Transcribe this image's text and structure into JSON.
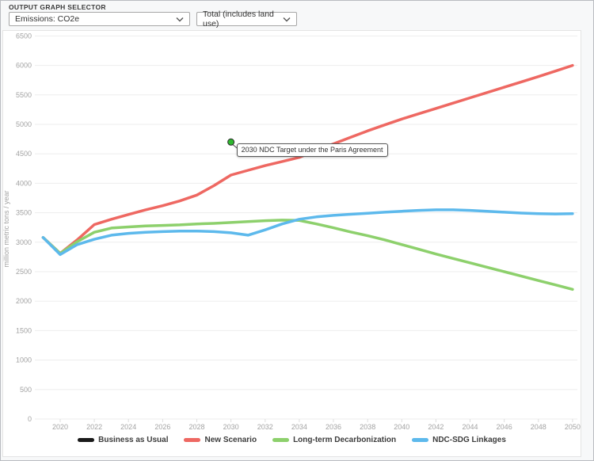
{
  "header": {
    "label": "OUTPUT GRAPH SELECTOR",
    "graph_select": {
      "value": "Emissions: CO2e"
    },
    "unit_select": {
      "value": "Total (includes land use)"
    }
  },
  "chart_data": {
    "type": "line",
    "title": "",
    "xlabel": "",
    "ylabel": "million metric tons / year",
    "ylim": [
      0,
      6500
    ],
    "ytick_step": 500,
    "xticks": [
      2020,
      2022,
      2024,
      2026,
      2028,
      2030,
      2032,
      2034,
      2036,
      2038,
      2040,
      2042,
      2044,
      2046,
      2048,
      2050
    ],
    "grid": true,
    "legend_position": "bottom",
    "x": [
      2019,
      2020,
      2021,
      2022,
      2023,
      2024,
      2025,
      2026,
      2027,
      2028,
      2029,
      2030,
      2031,
      2032,
      2033,
      2034,
      2035,
      2036,
      2037,
      2038,
      2039,
      2040,
      2041,
      2042,
      2043,
      2044,
      2045,
      2046,
      2047,
      2048,
      2049,
      2050
    ],
    "series": [
      {
        "name": "Business as Usual",
        "color": "#1a1a1a",
        "visible": false,
        "values": null
      },
      {
        "name": "New Scenario",
        "color": "#ee6862",
        "visible": true,
        "values": [
          3080,
          2810,
          3040,
          3300,
          3390,
          3470,
          3550,
          3620,
          3700,
          3800,
          3960,
          4140,
          4220,
          4300,
          4370,
          4440,
          4560,
          4670,
          4780,
          4890,
          4990,
          5090,
          5180,
          5270,
          5360,
          5450,
          5540,
          5630,
          5720,
          5810,
          5905,
          6000
        ]
      },
      {
        "name": "Long-term Decarbonization",
        "color": "#8dd06c",
        "visible": true,
        "values": [
          3080,
          2810,
          3010,
          3170,
          3240,
          3260,
          3275,
          3285,
          3295,
          3310,
          3320,
          3335,
          3350,
          3365,
          3375,
          3370,
          3310,
          3245,
          3175,
          3110,
          3040,
          2960,
          2880,
          2800,
          2725,
          2650,
          2575,
          2500,
          2425,
          2350,
          2275,
          2200
        ]
      },
      {
        "name": "NDC-SDG Linkages",
        "color": "#5db9ec",
        "visible": true,
        "values": [
          3080,
          2790,
          2960,
          3050,
          3120,
          3150,
          3170,
          3180,
          3190,
          3190,
          3180,
          3160,
          3120,
          3210,
          3310,
          3390,
          3430,
          3455,
          3475,
          3490,
          3510,
          3525,
          3540,
          3550,
          3550,
          3540,
          3525,
          3510,
          3495,
          3485,
          3480,
          3485
        ]
      }
    ],
    "annotation": {
      "label": "2030 NDC Target under the Paris Agreement",
      "x": 2030,
      "y": 4700,
      "marker_fill": "#2eb82e",
      "marker_stroke": "#2a2a2a"
    }
  }
}
